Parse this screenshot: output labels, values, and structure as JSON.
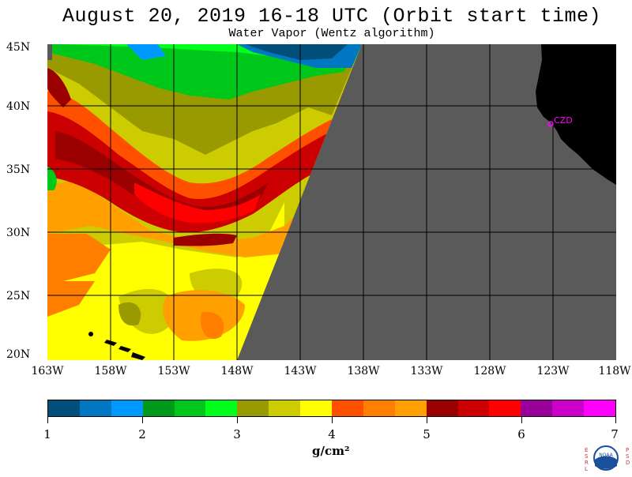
{
  "header": {
    "title": "August 20, 2019  16-18 UTC  (Orbit start time)",
    "subtitle": "Water Vapor (Wentz algorithm)"
  },
  "map": {
    "lat_labels": [
      "45N",
      "40N",
      "35N",
      "30N",
      "25N",
      "20N"
    ],
    "lon_labels": [
      "163W",
      "158W",
      "153W",
      "148W",
      "143W",
      "138W",
      "133W",
      "128W",
      "123W",
      "118W"
    ],
    "lat_range": [
      20,
      45
    ],
    "lon_range": [
      -163,
      -118
    ],
    "no_data_color": "#5a5a5a",
    "land_color": "#000000",
    "grid_color": "#000000",
    "city_label": "CZD",
    "city_marker_color": "#ff00ff"
  },
  "colorbar": {
    "colors": [
      "#004f7a",
      "#0077c0",
      "#0099ff",
      "#009a1a",
      "#00c81a",
      "#00ff1a",
      "#999900",
      "#cccc00",
      "#ffff00",
      "#ff5000",
      "#ff7e00",
      "#ffa000",
      "#9a0000",
      "#cc0000",
      "#ff0000",
      "#990099",
      "#cc00cc",
      "#ff00ff"
    ],
    "ticks": [
      "1",
      "2",
      "3",
      "4",
      "5",
      "6",
      "7"
    ],
    "units": "g/cm²",
    "range": [
      1,
      7
    ]
  },
  "logo": {
    "left_letters": "ESRL",
    "right_letters": "PSD",
    "center_text": "NOAA"
  }
}
